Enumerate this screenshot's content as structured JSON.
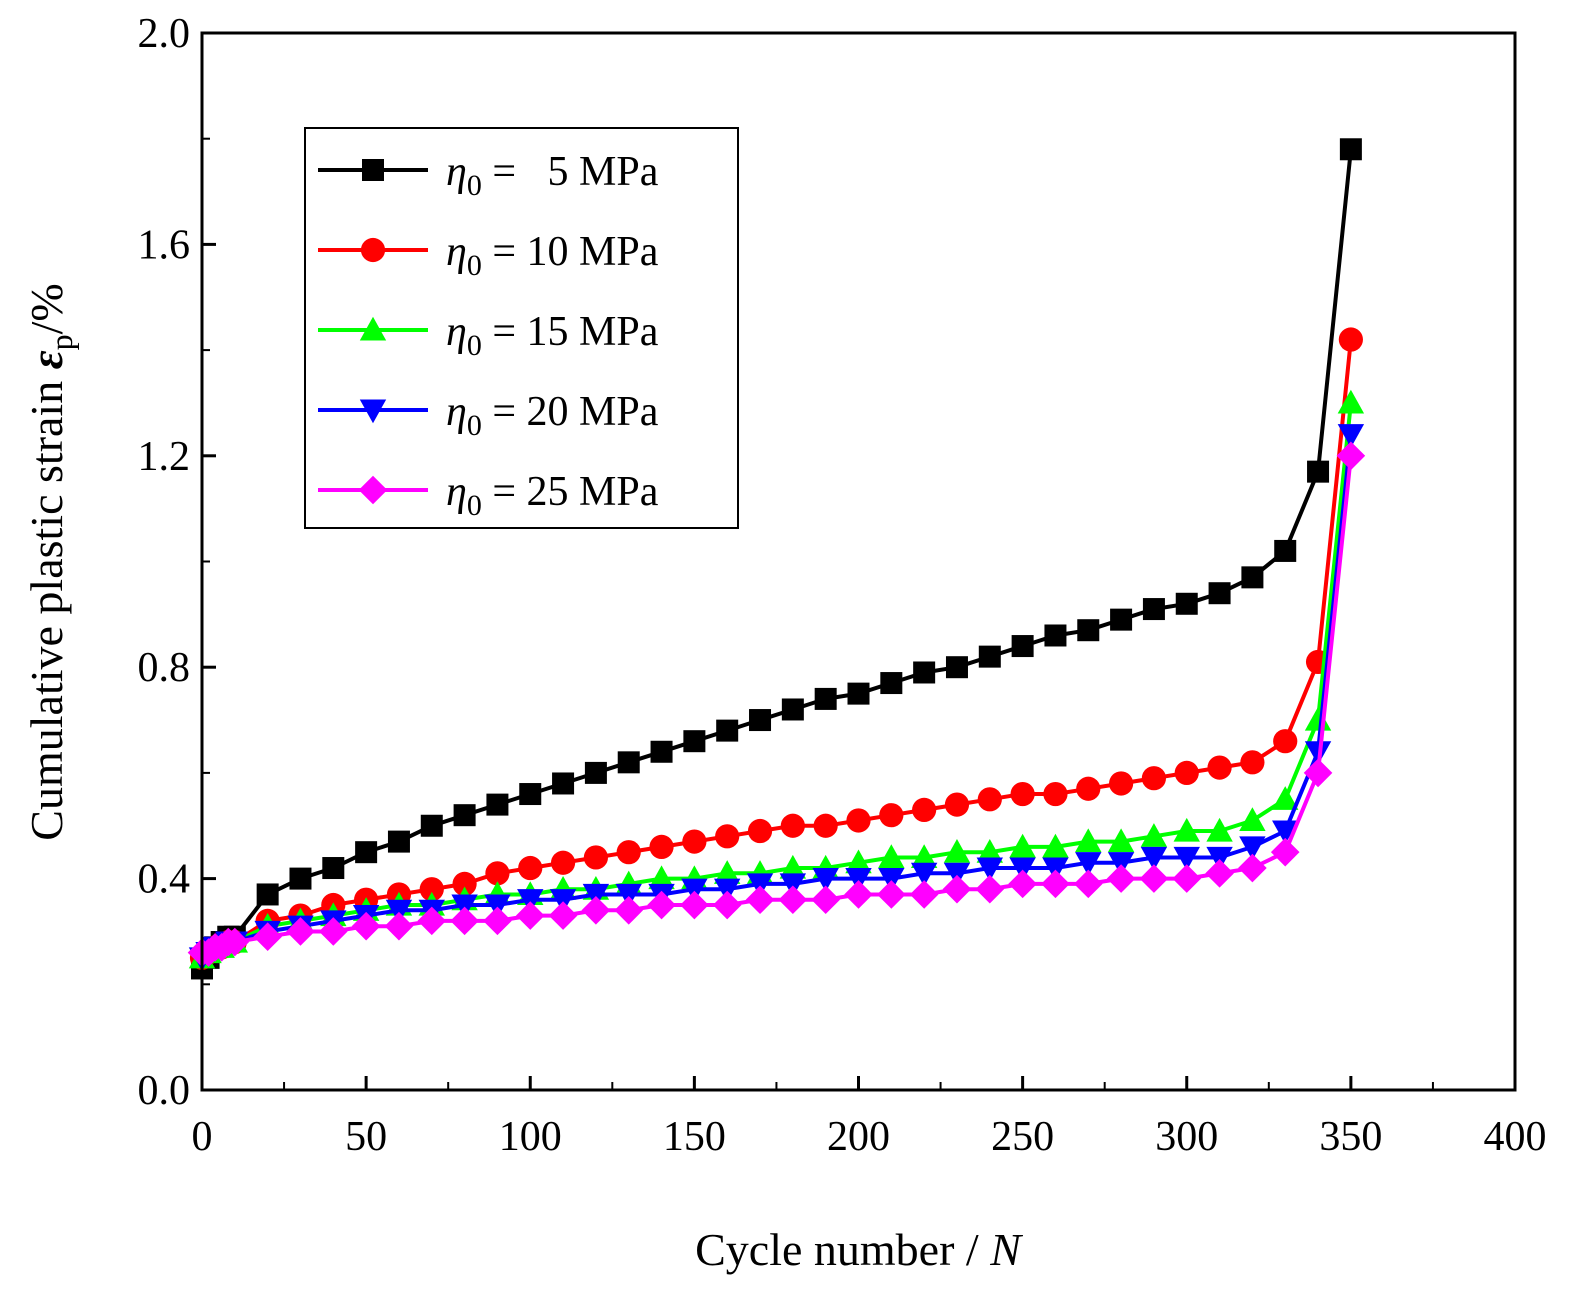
{
  "chart_data": {
    "type": "line",
    "title": "",
    "xlabel": "Cycle number / ",
    "xlabel_var": "N",
    "ylabel": "Cumulative plastic strain  ",
    "ylabel_symbol": "ε",
    "ylabel_sub": "p",
    "ylabel_unit": "/%",
    "xlim": [
      0,
      400
    ],
    "ylim": [
      0,
      2.0
    ],
    "xticks": [
      0,
      50,
      100,
      150,
      200,
      250,
      300,
      350,
      400
    ],
    "yticks": [
      0.0,
      0.4,
      0.8,
      1.2,
      1.6,
      2.0
    ],
    "xtick_labels": [
      "0",
      "50",
      "100",
      "150",
      "200",
      "250",
      "300",
      "350",
      "400"
    ],
    "ytick_labels": [
      "0.0",
      "0.4",
      "0.8",
      "1.2",
      "1.6",
      "2.0"
    ],
    "legend_position": "top-left",
    "legend_prefix": "η",
    "legend_prefix_sub": "0",
    "grid": false,
    "series": [
      {
        "name": "η0 =   5 MPa",
        "legend_value": " =   5 MPa",
        "color": "#000000",
        "marker": "square",
        "x": [
          0,
          2,
          4,
          6,
          8,
          10,
          20,
          30,
          40,
          50,
          60,
          70,
          80,
          90,
          100,
          110,
          120,
          130,
          140,
          150,
          160,
          170,
          180,
          190,
          200,
          210,
          220,
          230,
          240,
          250,
          260,
          270,
          280,
          290,
          300,
          310,
          320,
          330,
          340,
          350
        ],
        "y": [
          0.23,
          0.25,
          0.27,
          0.28,
          0.29,
          0.29,
          0.37,
          0.4,
          0.42,
          0.45,
          0.47,
          0.5,
          0.52,
          0.54,
          0.56,
          0.58,
          0.6,
          0.62,
          0.64,
          0.66,
          0.68,
          0.7,
          0.72,
          0.74,
          0.75,
          0.77,
          0.79,
          0.8,
          0.82,
          0.84,
          0.86,
          0.87,
          0.89,
          0.91,
          0.92,
          0.94,
          0.97,
          1.02,
          1.17,
          1.78
        ]
      },
      {
        "name": "η0 = 10 MPa",
        "legend_value": " = 10 MPa",
        "color": "#ff0000",
        "marker": "circle",
        "x": [
          0,
          2,
          4,
          6,
          8,
          10,
          20,
          30,
          40,
          50,
          60,
          70,
          80,
          90,
          100,
          110,
          120,
          130,
          140,
          150,
          160,
          170,
          180,
          190,
          200,
          210,
          220,
          230,
          240,
          250,
          260,
          270,
          280,
          290,
          300,
          310,
          320,
          330,
          340,
          350
        ],
        "y": [
          0.25,
          0.26,
          0.27,
          0.27,
          0.28,
          0.28,
          0.32,
          0.33,
          0.35,
          0.36,
          0.37,
          0.38,
          0.39,
          0.41,
          0.42,
          0.43,
          0.44,
          0.45,
          0.46,
          0.47,
          0.48,
          0.49,
          0.5,
          0.5,
          0.51,
          0.52,
          0.53,
          0.54,
          0.55,
          0.56,
          0.56,
          0.57,
          0.58,
          0.59,
          0.6,
          0.61,
          0.62,
          0.66,
          0.81,
          1.42
        ]
      },
      {
        "name": "η0 = 15 MPa",
        "legend_value": " = 15 MPa",
        "color": "#00ff00",
        "marker": "triangle-up",
        "x": [
          0,
          2,
          4,
          6,
          8,
          10,
          20,
          30,
          40,
          50,
          60,
          70,
          80,
          90,
          100,
          110,
          120,
          130,
          140,
          150,
          160,
          170,
          180,
          190,
          200,
          210,
          220,
          230,
          240,
          250,
          260,
          270,
          280,
          290,
          300,
          310,
          320,
          330,
          340,
          350
        ],
        "y": [
          0.25,
          0.26,
          0.27,
          0.27,
          0.28,
          0.28,
          0.31,
          0.32,
          0.33,
          0.34,
          0.35,
          0.35,
          0.36,
          0.37,
          0.37,
          0.38,
          0.38,
          0.39,
          0.4,
          0.4,
          0.41,
          0.41,
          0.42,
          0.42,
          0.43,
          0.44,
          0.44,
          0.45,
          0.45,
          0.46,
          0.46,
          0.47,
          0.47,
          0.48,
          0.49,
          0.49,
          0.51,
          0.55,
          0.7,
          1.3
        ]
      },
      {
        "name": "η0 = 20 MPa",
        "legend_value": " = 20 MPa",
        "color": "#0000ff",
        "marker": "triangle-down",
        "x": [
          0,
          2,
          4,
          6,
          8,
          10,
          20,
          30,
          40,
          50,
          60,
          70,
          80,
          90,
          100,
          110,
          120,
          130,
          140,
          150,
          160,
          170,
          180,
          190,
          200,
          210,
          220,
          230,
          240,
          250,
          260,
          270,
          280,
          290,
          300,
          310,
          320,
          330,
          340,
          350
        ],
        "y": [
          0.25,
          0.26,
          0.27,
          0.27,
          0.28,
          0.28,
          0.3,
          0.31,
          0.32,
          0.33,
          0.34,
          0.34,
          0.35,
          0.35,
          0.36,
          0.36,
          0.37,
          0.37,
          0.37,
          0.38,
          0.38,
          0.39,
          0.39,
          0.4,
          0.4,
          0.4,
          0.41,
          0.41,
          0.42,
          0.42,
          0.42,
          0.43,
          0.43,
          0.44,
          0.44,
          0.44,
          0.46,
          0.49,
          0.64,
          1.24
        ]
      },
      {
        "name": "η0 = 25 MPa",
        "legend_value": " = 25 MPa",
        "color": "#ff00ff",
        "marker": "diamond",
        "x": [
          0,
          2,
          4,
          6,
          8,
          10,
          20,
          30,
          40,
          50,
          60,
          70,
          80,
          90,
          100,
          110,
          120,
          130,
          140,
          150,
          160,
          170,
          180,
          190,
          200,
          210,
          220,
          230,
          240,
          250,
          260,
          270,
          280,
          290,
          300,
          310,
          320,
          330,
          340,
          350
        ],
        "y": [
          0.26,
          0.26,
          0.27,
          0.27,
          0.28,
          0.28,
          0.29,
          0.3,
          0.3,
          0.31,
          0.31,
          0.32,
          0.32,
          0.32,
          0.33,
          0.33,
          0.34,
          0.34,
          0.35,
          0.35,
          0.35,
          0.36,
          0.36,
          0.36,
          0.37,
          0.37,
          0.37,
          0.38,
          0.38,
          0.39,
          0.39,
          0.39,
          0.4,
          0.4,
          0.4,
          0.41,
          0.42,
          0.45,
          0.6,
          1.2
        ]
      }
    ]
  }
}
